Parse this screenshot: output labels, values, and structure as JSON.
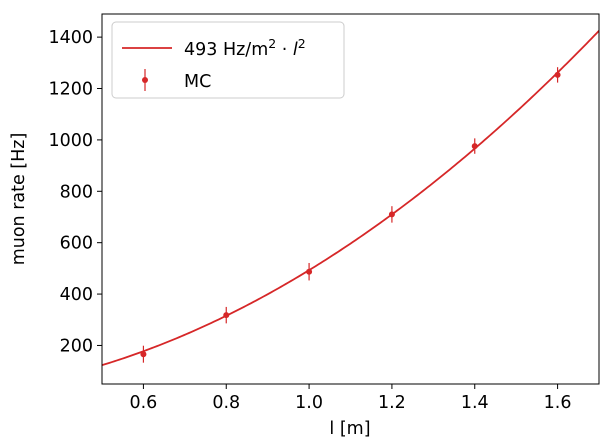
{
  "chart_data": {
    "type": "scatter",
    "xlabel": "l [m]",
    "ylabel": "muon rate [Hz]",
    "xlim": [
      0.5,
      1.7
    ],
    "ylim": [
      50,
      1490
    ],
    "xticks": [
      "0.6",
      "0.8",
      "1.0",
      "1.2",
      "1.4",
      "1.6"
    ],
    "yticks": [
      "200",
      "400",
      "600",
      "800",
      "1000",
      "1200",
      "1400"
    ],
    "grid": false,
    "legend_position": "top-left",
    "colors": {
      "series": "#d62728"
    },
    "fit": {
      "name": "493 Hz/m² · l²",
      "legend_base": "493 Hz/m",
      "legend_sup1": "2",
      "legend_mid": " · ",
      "legend_var": "l",
      "legend_sup2": "2",
      "coefficient": 493,
      "exponent": 2
    },
    "series": [
      {
        "name": "MC",
        "x": [
          0.6,
          0.8,
          1.0,
          1.2,
          1.4,
          1.6
        ],
        "y": [
          166,
          318,
          487,
          710,
          976,
          1253
        ],
        "yerr": [
          33,
          32,
          34,
          32,
          30,
          30
        ]
      }
    ]
  }
}
